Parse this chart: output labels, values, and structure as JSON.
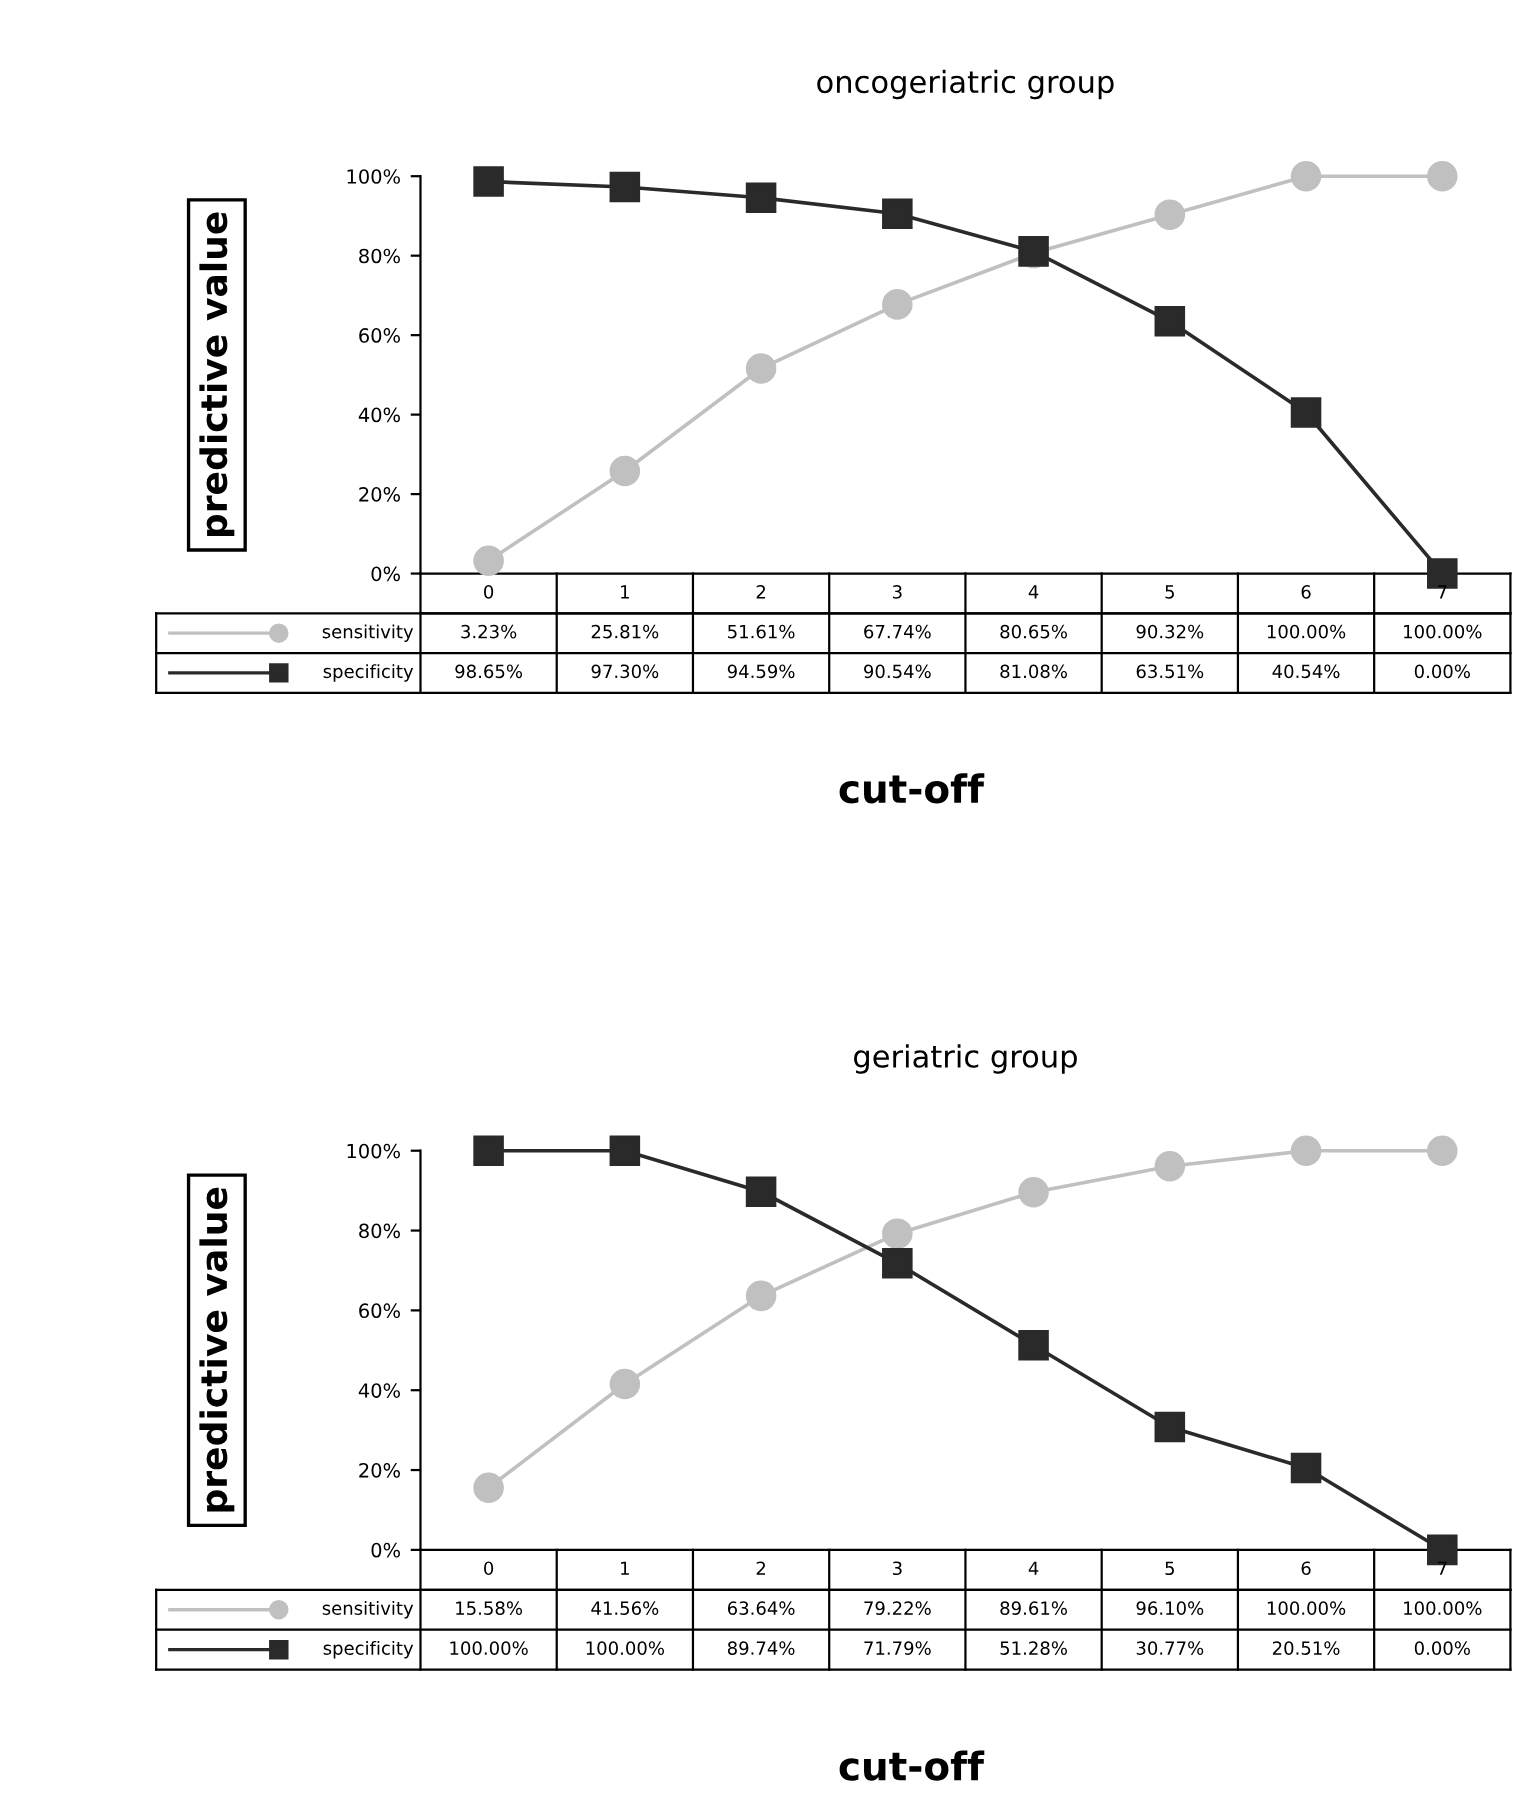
{
  "chart_data": [
    {
      "type": "line",
      "title": "oncogeriatric group",
      "xlabel": "cut-off",
      "ylabel": "predictive value",
      "categories": [
        "0",
        "1",
        "2",
        "3",
        "4",
        "5",
        "6",
        "7"
      ],
      "ylim": [
        0,
        100
      ],
      "yticks": [
        {
          "value": 0,
          "label": "0%"
        },
        {
          "value": 20,
          "label": "20%"
        },
        {
          "value": 40,
          "label": "40%"
        },
        {
          "value": 60,
          "label": "60%"
        },
        {
          "value": 80,
          "label": "80%"
        },
        {
          "value": 100,
          "label": "100%"
        }
      ],
      "legend": "bottom",
      "grid": false,
      "series": [
        {
          "name": "sensitivity",
          "color": "#c0c0c0",
          "marker": "circle",
          "values": [
            3.23,
            25.81,
            51.61,
            67.74,
            80.65,
            90.32,
            100.0,
            100.0
          ],
          "value_labels": [
            "3.23%",
            "25.81%",
            "51.61%",
            "67.74%",
            "80.65%",
            "90.32%",
            "100.00%",
            "100.00%"
          ]
        },
        {
          "name": "specificity",
          "color": "#2a2a2a",
          "marker": "square",
          "values": [
            98.65,
            97.3,
            94.59,
            90.54,
            81.08,
            63.51,
            40.54,
            0.0
          ],
          "value_labels": [
            "98.65%",
            "97.30%",
            "94.59%",
            "90.54%",
            "81.08%",
            "63.51%",
            "40.54%",
            "0.00%"
          ]
        }
      ]
    },
    {
      "type": "line",
      "title": "geriatric group",
      "xlabel": "cut-off",
      "ylabel": "predictive value",
      "categories": [
        "0",
        "1",
        "2",
        "3",
        "4",
        "5",
        "6",
        "7"
      ],
      "ylim": [
        0,
        100
      ],
      "yticks": [
        {
          "value": 0,
          "label": "0%"
        },
        {
          "value": 20,
          "label": "20%"
        },
        {
          "value": 40,
          "label": "40%"
        },
        {
          "value": 60,
          "label": "60%"
        },
        {
          "value": 80,
          "label": "80%"
        },
        {
          "value": 100,
          "label": "100%"
        }
      ],
      "legend": "bottom",
      "grid": false,
      "series": [
        {
          "name": "sensitivity",
          "color": "#c0c0c0",
          "marker": "circle",
          "values": [
            15.58,
            41.56,
            63.64,
            79.22,
            89.61,
            96.1,
            100.0,
            100.0
          ],
          "value_labels": [
            "15.58%",
            "41.56%",
            "63.64%",
            "79.22%",
            "89.61%",
            "96.10%",
            "100.00%",
            "100.00%"
          ]
        },
        {
          "name": "specificity",
          "color": "#2a2a2a",
          "marker": "square",
          "values": [
            100.0,
            100.0,
            89.74,
            71.79,
            51.28,
            30.77,
            20.51,
            0.0
          ],
          "value_labels": [
            "100.00%",
            "100.00%",
            "89.74%",
            "71.79%",
            "51.28%",
            "30.77%",
            "20.51%",
            "0.00%"
          ]
        }
      ]
    }
  ]
}
